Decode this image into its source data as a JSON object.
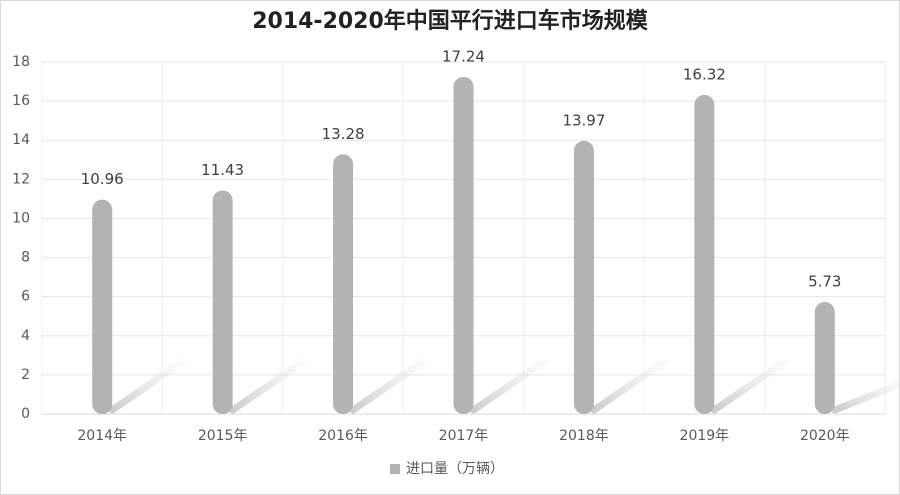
{
  "chart_data": {
    "type": "bar",
    "title": "2014-2020年中国平行进口车市场规模",
    "categories": [
      "2014年",
      "2015年",
      "2016年",
      "2017年",
      "2018年",
      "2019年",
      "2020年"
    ],
    "series": [
      {
        "name": "进口量（万辆）",
        "color": "#b3b3b3",
        "values": [
          10.96,
          11.43,
          13.28,
          17.24,
          13.97,
          16.32,
          5.73
        ]
      }
    ],
    "ylim": [
      0,
      18
    ],
    "yticks": [
      0,
      2,
      4,
      6,
      8,
      10,
      12,
      14,
      16,
      18
    ],
    "grid": true,
    "legend": "bottom"
  }
}
